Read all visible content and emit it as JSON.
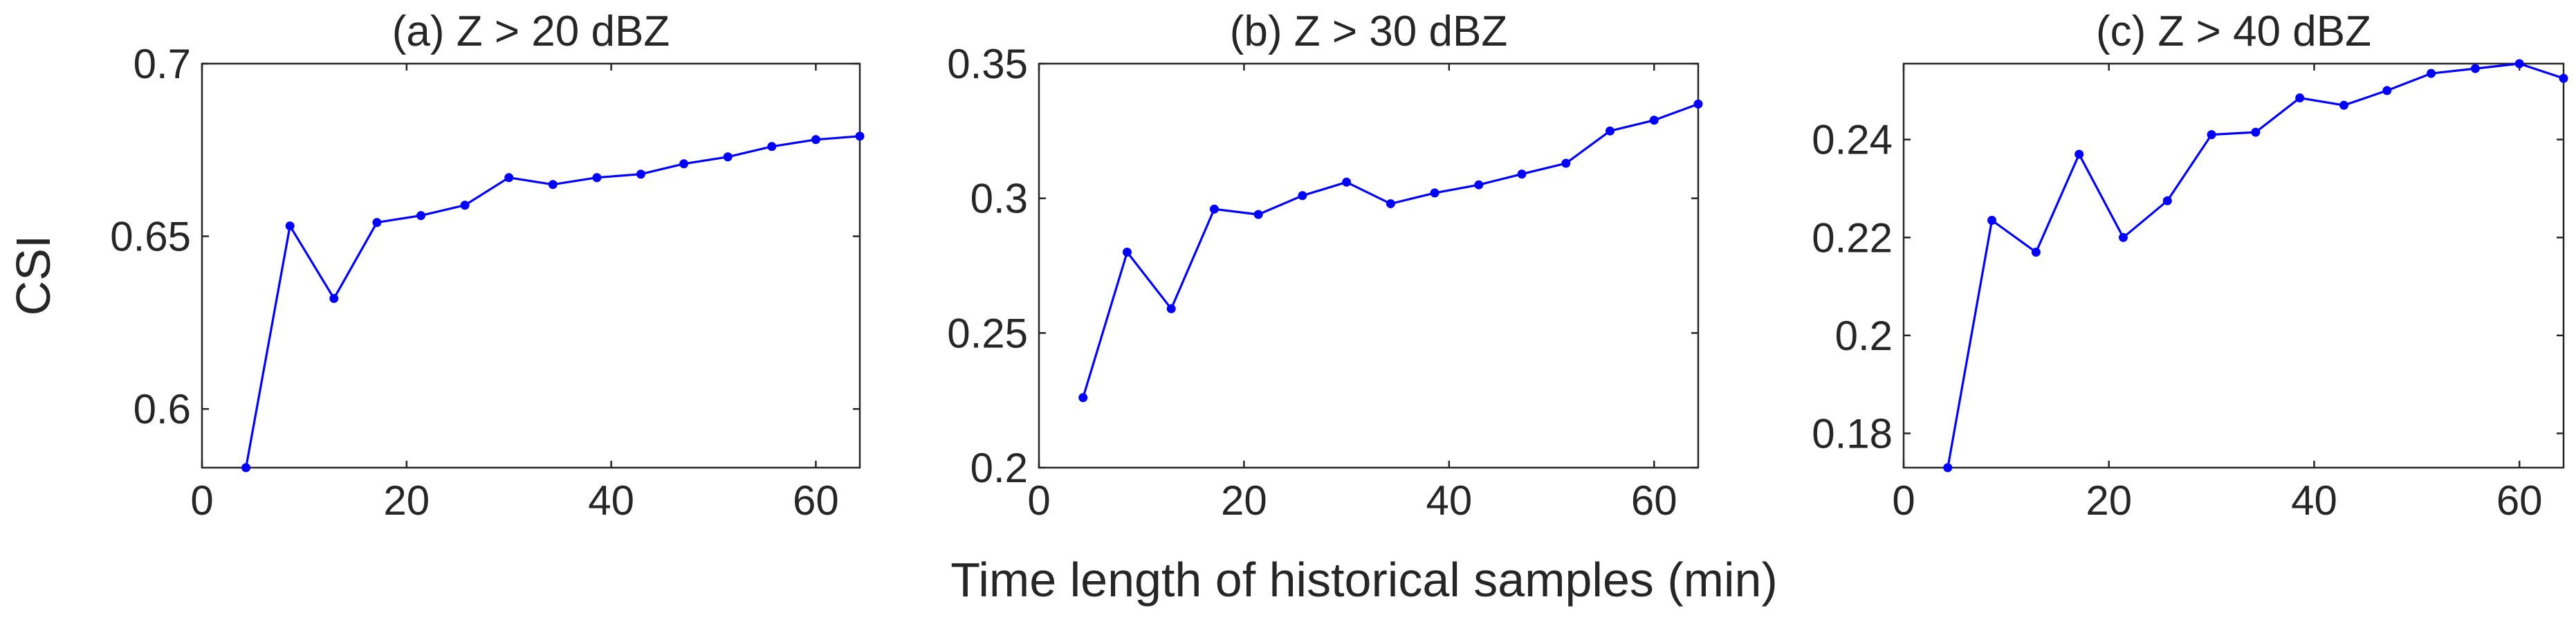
{
  "figure": {
    "ylabel": "CSI",
    "xlabel": "Time length of historical samples (min)",
    "line_color": "#0000ff"
  },
  "chart_data": [
    {
      "type": "line",
      "title": "(a) Z > 20 dBZ",
      "xlabel": "Time length of historical samples (min)",
      "ylabel": "CSI",
      "xlim": [
        0,
        64.3
      ],
      "ylim": [
        0.583,
        0.7
      ],
      "xticks": [
        0,
        20,
        40,
        60
      ],
      "yticks": [
        0.6,
        0.65,
        0.7
      ],
      "ytick_labels": [
        "0.6",
        "0.65",
        "0.7"
      ],
      "grid": false,
      "series": [
        {
          "x": [
            4.3,
            8.6,
            12.9,
            17.1,
            21.4,
            25.7,
            30.0,
            34.3,
            38.6,
            42.9,
            47.1,
            51.4,
            55.7,
            60.0,
            64.3
          ],
          "y": [
            0.583,
            0.653,
            0.632,
            0.654,
            0.656,
            0.659,
            0.667,
            0.665,
            0.667,
            0.668,
            0.671,
            0.673,
            0.676,
            0.678,
            0.679
          ]
        }
      ]
    },
    {
      "type": "line",
      "title": "(b) Z > 30 dBZ",
      "xlabel": "Time length of historical samples (min)",
      "ylabel": "CSI",
      "xlim": [
        0,
        64.3
      ],
      "ylim": [
        0.2,
        0.35
      ],
      "xticks": [
        0,
        20,
        40,
        60
      ],
      "yticks": [
        0.2,
        0.25,
        0.3,
        0.35
      ],
      "ytick_labels": [
        "0.2",
        "0.25",
        "0.3",
        "0.35"
      ],
      "grid": false,
      "series": [
        {
          "x": [
            4.3,
            8.6,
            12.9,
            17.1,
            21.4,
            25.7,
            30.0,
            34.3,
            38.6,
            42.9,
            47.1,
            51.4,
            55.7,
            60.0,
            64.3
          ],
          "y": [
            0.226,
            0.28,
            0.259,
            0.296,
            0.294,
            0.301,
            0.306,
            0.298,
            0.302,
            0.305,
            0.309,
            0.313,
            0.325,
            0.329,
            0.335
          ]
        }
      ]
    },
    {
      "type": "line",
      "title": "(c) Z > 40 dBZ",
      "xlabel": "Time length of historical samples (min)",
      "ylabel": "CSI",
      "xlim": [
        0,
        64.3
      ],
      "ylim": [
        0.173,
        0.2555
      ],
      "xticks": [
        0,
        20,
        40,
        60
      ],
      "yticks": [
        0.18,
        0.2,
        0.22,
        0.24
      ],
      "ytick_labels": [
        "0.18",
        "0.2",
        "0.22",
        "0.24"
      ],
      "grid": false,
      "series": [
        {
          "x": [
            4.3,
            8.6,
            12.9,
            17.1,
            21.4,
            25.7,
            30.0,
            34.3,
            38.6,
            42.9,
            47.1,
            51.4,
            55.7,
            60.0,
            64.3
          ],
          "y": [
            0.173,
            0.2235,
            0.217,
            0.237,
            0.22,
            0.2275,
            0.241,
            0.2415,
            0.2485,
            0.247,
            0.25,
            0.2535,
            0.2545,
            0.2555,
            0.2525
          ]
        }
      ]
    }
  ]
}
